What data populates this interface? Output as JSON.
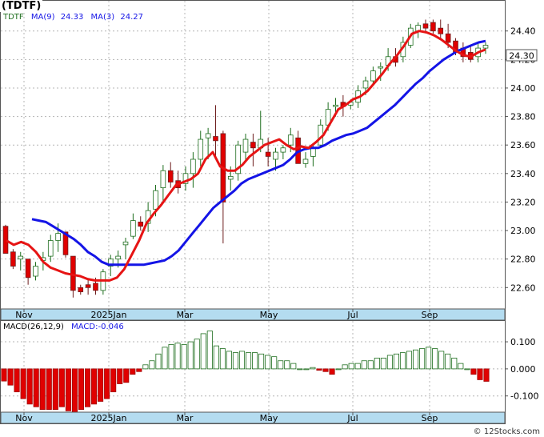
{
  "ticker_badge": "(TDTF)",
  "legend": {
    "ticker": "TDTF",
    "ma9_label": "MA(9)",
    "ma9_value": "24.33",
    "ma3_label": "MA(3)",
    "ma3_value": "24.27"
  },
  "macd_legend": {
    "label": "MACD(26,12,9)",
    "value_label": "MACD:-0.046"
  },
  "last_price_label": "24.30",
  "watermark": "© 12Stocks.com",
  "colors": {
    "up_candle_fill": "#ffffff",
    "up_candle_edge": "#1e6e1e",
    "down_candle_fill": "#e00000",
    "ma_long": "#1414e6",
    "ma_short": "#e61414",
    "macd_pos": "#1e6e1e",
    "macd_neg": "#e00000",
    "axis_band": "#b4dcf0",
    "grid": "#b4b4b4"
  },
  "chart_data": [
    {
      "type": "candlestick",
      "title": "",
      "x_tick_labels": [
        "Nov",
        "2025Jan",
        "Mar",
        "May",
        "Jul",
        "Sep"
      ],
      "y_tick_labels": [
        "22.60",
        "22.80",
        "23.00",
        "23.20",
        "23.40",
        "23.60",
        "23.80",
        "24.00",
        "24.20",
        "24.40"
      ],
      "ylim": [
        22.45,
        24.55
      ],
      "grid": true,
      "series": [
        {
          "name": "MA(9)",
          "values": [
            23.08,
            23.07,
            23.06,
            23.03,
            23.0,
            22.97,
            22.94,
            22.9,
            22.85,
            22.82,
            22.78,
            22.76,
            22.76,
            22.76,
            22.76,
            22.76,
            22.76,
            22.77,
            22.78,
            22.79,
            22.82,
            22.86,
            22.92,
            22.98,
            23.04,
            23.1,
            23.16,
            23.2,
            23.24,
            23.28,
            23.33,
            23.36,
            23.38,
            23.4,
            23.42,
            23.44,
            23.46,
            23.5,
            23.55,
            23.57,
            23.58,
            23.58,
            23.6,
            23.63,
            23.65,
            23.67,
            23.68,
            23.7,
            23.72,
            23.76,
            23.8,
            23.84,
            23.88,
            23.93,
            23.98,
            24.03,
            24.07,
            24.12,
            24.16,
            24.2,
            24.23,
            24.26,
            24.28,
            24.3,
            24.32,
            24.33
          ]
        },
        {
          "name": "MA(3)",
          "values": [
            22.93,
            22.9,
            22.92,
            22.9,
            22.85,
            22.78,
            22.74,
            22.72,
            22.7,
            22.69,
            22.68,
            22.66,
            22.65,
            22.65,
            22.65,
            22.67,
            22.73,
            22.83,
            22.93,
            23.05,
            23.12,
            23.18,
            23.25,
            23.32,
            23.34,
            23.36,
            23.4,
            23.5,
            23.55,
            23.45,
            23.42,
            23.42,
            23.46,
            23.52,
            23.56,
            23.6,
            23.62,
            23.64,
            23.6,
            23.57,
            23.59,
            23.58,
            23.62,
            23.67,
            23.76,
            23.85,
            23.88,
            23.92,
            23.94,
            23.98,
            24.04,
            24.1,
            24.17,
            24.23,
            24.3,
            24.38,
            24.4,
            24.39,
            24.37,
            24.34,
            24.3,
            24.26,
            24.23,
            24.22,
            24.25,
            24.27
          ]
        }
      ],
      "candles": [
        [
          23.03,
          23.04,
          22.85,
          22.84
        ],
        [
          22.85,
          22.87,
          22.73,
          22.75
        ],
        [
          22.8,
          22.85,
          22.72,
          22.82
        ],
        [
          22.8,
          22.8,
          22.62,
          22.67
        ],
        [
          22.68,
          22.78,
          22.65,
          22.75
        ],
        [
          22.79,
          22.85,
          22.72,
          22.81
        ],
        [
          22.82,
          22.97,
          22.78,
          22.93
        ],
        [
          22.93,
          23.05,
          22.85,
          22.98
        ],
        [
          22.99,
          22.99,
          22.81,
          22.83
        ],
        [
          22.82,
          22.82,
          22.53,
          22.58
        ],
        [
          22.6,
          22.62,
          22.55,
          22.57
        ],
        [
          22.62,
          22.66,
          22.55,
          22.6
        ],
        [
          22.63,
          22.67,
          22.55,
          22.58
        ],
        [
          22.58,
          22.73,
          22.55,
          22.71
        ],
        [
          22.75,
          22.83,
          22.68,
          22.8
        ],
        [
          22.8,
          22.86,
          22.74,
          22.82
        ],
        [
          22.9,
          22.95,
          22.8,
          22.92
        ],
        [
          22.96,
          23.12,
          22.94,
          23.07
        ],
        [
          23.06,
          23.1,
          23.0,
          23.03
        ],
        [
          23.05,
          23.2,
          22.99,
          23.14
        ],
        [
          23.15,
          23.32,
          23.1,
          23.28
        ],
        [
          23.3,
          23.46,
          23.2,
          23.42
        ],
        [
          23.42,
          23.48,
          23.3,
          23.34
        ],
        [
          23.35,
          23.42,
          23.26,
          23.3
        ],
        [
          23.33,
          23.45,
          23.28,
          23.4
        ],
        [
          23.4,
          23.55,
          23.3,
          23.5
        ],
        [
          23.5,
          23.7,
          23.45,
          23.64
        ],
        [
          23.65,
          23.72,
          23.5,
          23.68
        ],
        [
          23.66,
          23.88,
          23.5,
          23.63
        ],
        [
          23.68,
          23.7,
          22.91,
          23.2
        ],
        [
          23.36,
          23.45,
          23.28,
          23.38
        ],
        [
          23.4,
          23.63,
          23.35,
          23.6
        ],
        [
          23.55,
          23.68,
          23.48,
          23.64
        ],
        [
          23.62,
          23.68,
          23.45,
          23.58
        ],
        [
          23.58,
          23.84,
          23.55,
          23.64
        ],
        [
          23.55,
          23.65,
          23.45,
          23.52
        ],
        [
          23.5,
          23.58,
          23.42,
          23.55
        ],
        [
          23.55,
          23.6,
          23.5,
          23.58
        ],
        [
          23.6,
          23.72,
          23.55,
          23.67
        ],
        [
          23.65,
          23.7,
          23.48,
          23.47
        ],
        [
          23.47,
          23.55,
          23.44,
          23.5
        ],
        [
          23.52,
          23.6,
          23.45,
          23.58
        ],
        [
          23.6,
          23.78,
          23.58,
          23.74
        ],
        [
          23.74,
          23.9,
          23.7,
          23.85
        ],
        [
          23.87,
          23.93,
          23.8,
          23.88
        ],
        [
          23.9,
          23.95,
          23.8,
          23.87
        ],
        [
          23.88,
          23.92,
          23.85,
          23.9
        ],
        [
          23.9,
          24.02,
          23.86,
          23.98
        ],
        [
          24.0,
          24.08,
          23.95,
          24.05
        ],
        [
          24.05,
          24.15,
          24.02,
          24.12
        ],
        [
          24.14,
          24.18,
          24.05,
          24.15
        ],
        [
          24.16,
          24.28,
          24.12,
          24.22
        ],
        [
          24.22,
          24.28,
          24.15,
          24.18
        ],
        [
          24.22,
          24.36,
          24.18,
          24.32
        ],
        [
          24.3,
          24.45,
          24.28,
          24.42
        ],
        [
          24.4,
          24.46,
          24.35,
          24.44
        ],
        [
          24.45,
          24.48,
          24.4,
          24.42
        ],
        [
          24.46,
          24.48,
          24.38,
          24.4
        ],
        [
          24.42,
          24.48,
          24.35,
          24.38
        ],
        [
          24.38,
          24.45,
          24.28,
          24.32
        ],
        [
          24.33,
          24.35,
          24.23,
          24.25
        ],
        [
          24.28,
          24.32,
          24.18,
          24.22
        ],
        [
          24.25,
          24.3,
          24.18,
          24.2
        ],
        [
          24.22,
          24.32,
          24.18,
          24.28
        ],
        [
          24.28,
          24.32,
          24.24,
          24.3
        ]
      ],
      "last_price": 24.3
    },
    {
      "type": "bar",
      "title": "",
      "x_tick_labels": [
        "Nov",
        "2025Jan",
        "Mar",
        "May",
        "Jul",
        "Sep"
      ],
      "y_tick_labels": [
        "0.100",
        "0.000",
        "-0.100"
      ],
      "ylim": [
        -0.16,
        0.18
      ],
      "grid": true,
      "series": [
        {
          "name": "MACD(26,12,9)",
          "values": [
            -0.045,
            -0.06,
            -0.085,
            -0.11,
            -0.13,
            -0.14,
            -0.15,
            -0.15,
            -0.15,
            -0.14,
            -0.155,
            -0.16,
            -0.15,
            -0.14,
            -0.13,
            -0.12,
            -0.11,
            -0.085,
            -0.055,
            -0.05,
            -0.02,
            -0.01,
            0.015,
            0.03,
            0.055,
            0.08,
            0.09,
            0.095,
            0.09,
            0.1,
            0.11,
            0.13,
            0.14,
            0.085,
            0.075,
            0.065,
            0.06,
            0.065,
            0.06,
            0.06,
            0.055,
            0.05,
            0.045,
            0.03,
            0.03,
            0.02,
            0.0,
            0.0,
            0.005,
            -0.005,
            -0.01,
            -0.02,
            0.0,
            0.015,
            0.02,
            0.02,
            0.03,
            0.03,
            0.04,
            0.04,
            0.05,
            0.055,
            0.06,
            0.065,
            0.07,
            0.075,
            0.08,
            0.075,
            0.065,
            0.055,
            0.04,
            0.02,
            0.0,
            -0.02,
            -0.04,
            -0.046
          ]
        }
      ]
    }
  ]
}
